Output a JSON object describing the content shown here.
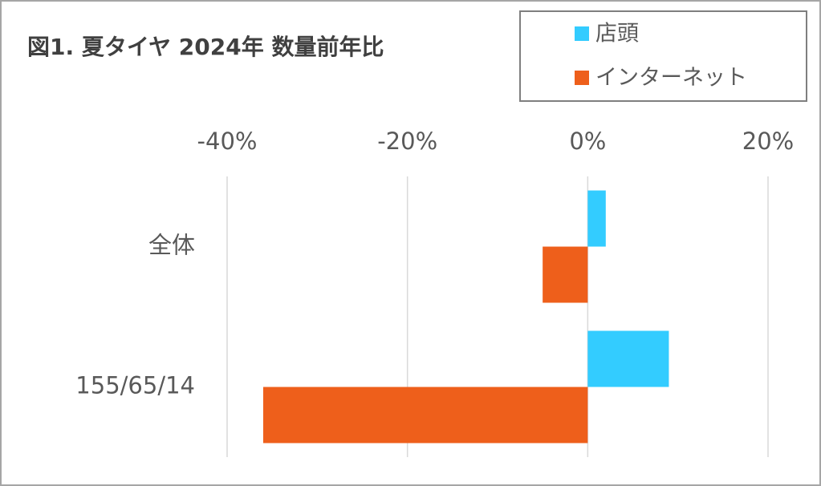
{
  "chart_data": {
    "type": "hbar",
    "title": "図1. 夏タイヤ 2024年 数量前年比",
    "categories": [
      "全体",
      "155/65/14"
    ],
    "series": [
      {
        "name": "店頭",
        "color": "#33ccff",
        "values": [
          2,
          9
        ]
      },
      {
        "name": "インターネット",
        "color": "#ee5f1b",
        "values": [
          -5,
          -36
        ]
      }
    ],
    "xlim": [
      -40,
      20
    ],
    "xticks": [
      {
        "value": -40,
        "label": "-40%"
      },
      {
        "value": -20,
        "label": "-20%"
      },
      {
        "value": 0,
        "label": "0%"
      },
      {
        "value": 20,
        "label": "20%"
      }
    ],
    "grid": true
  }
}
